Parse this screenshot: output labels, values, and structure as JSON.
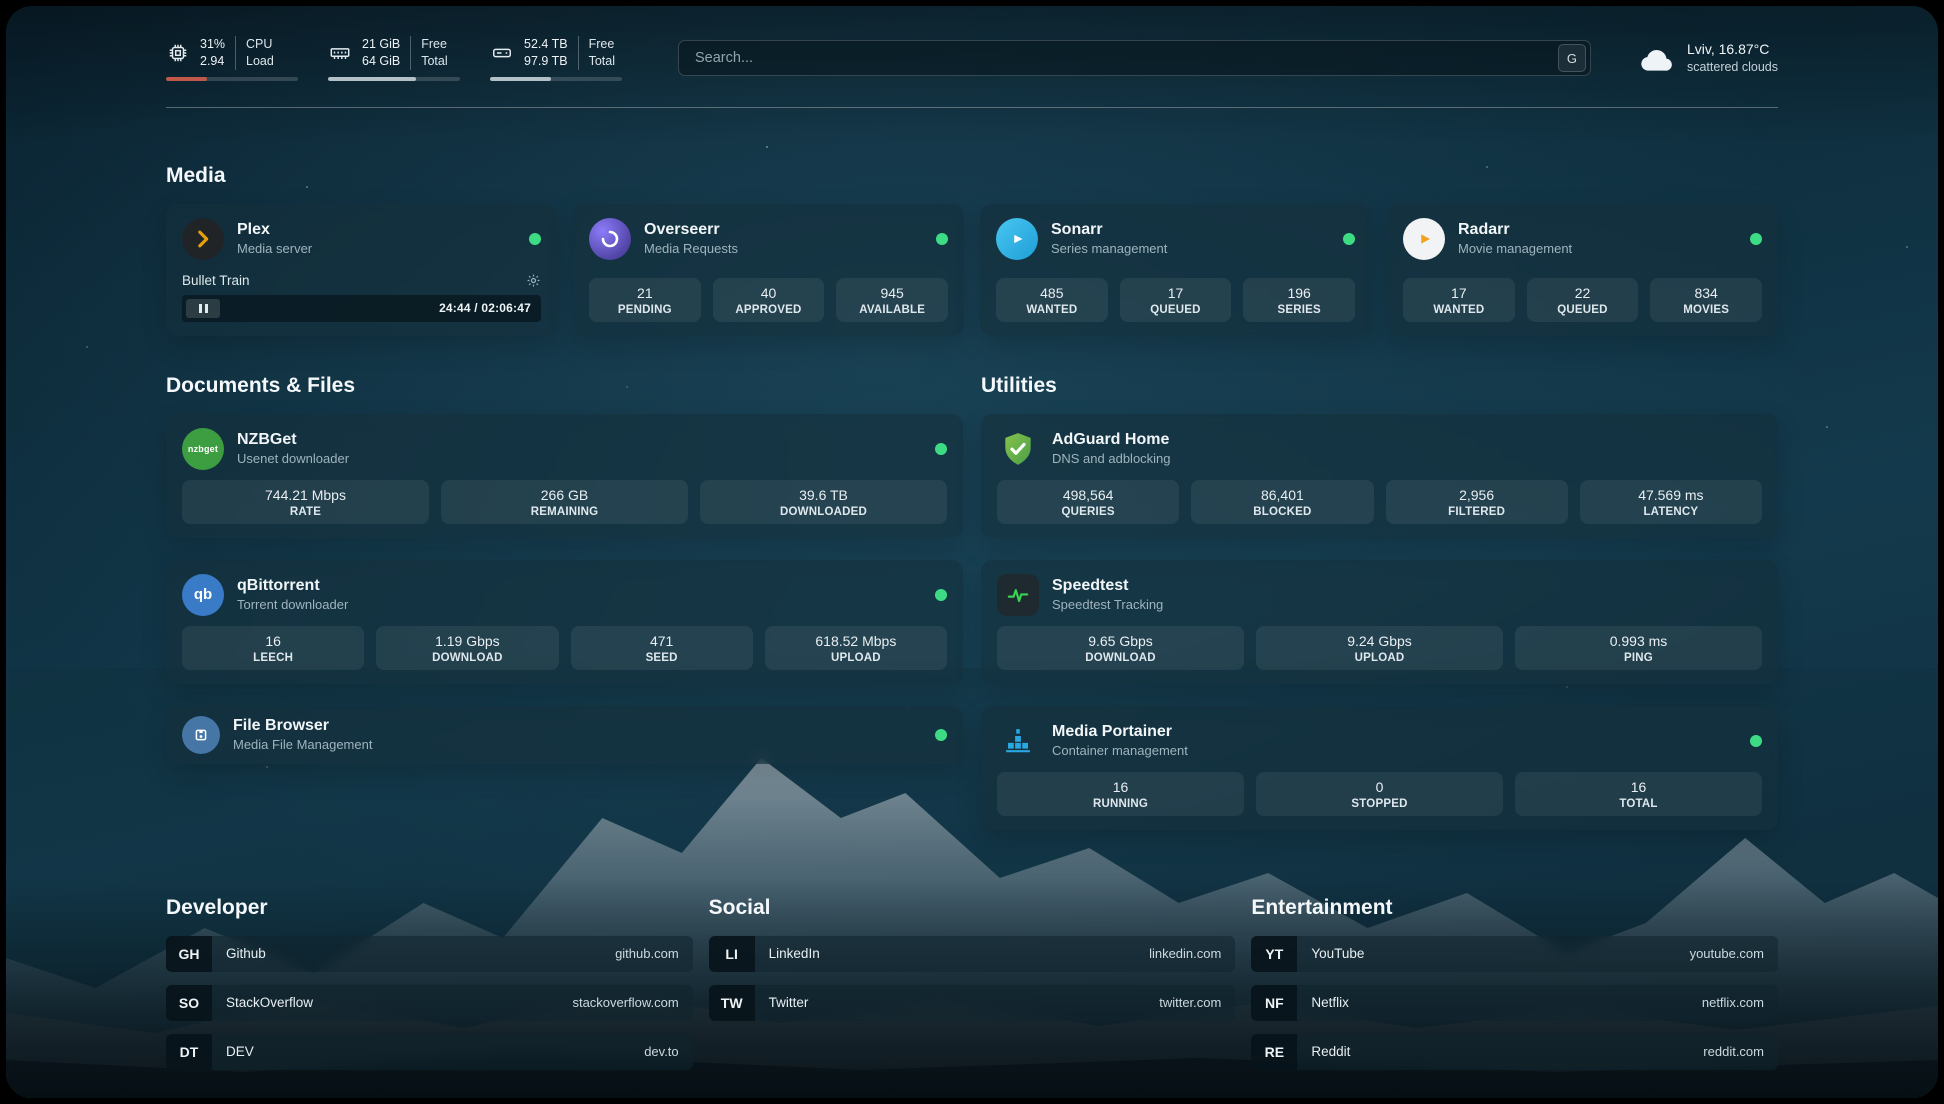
{
  "theme": {
    "accent_green": "#3ddc84",
    "cpu_bar_color": "#c2584a",
    "usage_bar_color": "#b4c0c8"
  },
  "topbar": {
    "cpu": {
      "icon": "cpu-icon",
      "value": "31%",
      "value2": "2.94",
      "label1": "CPU",
      "label2": "Load",
      "bar_pct": 31,
      "bar_color": "#c2584a"
    },
    "ram": {
      "icon": "ram-icon",
      "value": "21 GiB",
      "value2": "64 GiB",
      "label1": "Free",
      "label2": "Total",
      "bar_pct": 67,
      "bar_color": "#b4c0c8"
    },
    "disk": {
      "icon": "disk-icon",
      "value": "52.4 TB",
      "value2": "97.9 TB",
      "label1": "Free",
      "label2": "Total",
      "bar_pct": 46,
      "bar_color": "#b4c0c8"
    },
    "search": {
      "placeholder": "Search...",
      "button_label": "G"
    },
    "weather": {
      "icon": "cloud-icon",
      "location": "Lviv, 16.87°C",
      "condition": "scattered clouds"
    }
  },
  "sections": {
    "media": {
      "title": "Media",
      "apps": [
        {
          "icon": "plex-icon",
          "name": "Plex",
          "description": "Media server",
          "status_color": "#3ddc84",
          "player": {
            "track": "Bullet Train",
            "time": "24:44 / 02:06:47"
          }
        },
        {
          "icon": "overseerr-icon",
          "name": "Overseerr",
          "description": "Media Requests",
          "status_color": "#3ddc84",
          "stats": [
            {
              "value": "21",
              "label": "PENDING"
            },
            {
              "value": "40",
              "label": "APPROVED"
            },
            {
              "value": "945",
              "label": "AVAILABLE"
            }
          ]
        },
        {
          "icon": "sonarr-icon",
          "name": "Sonarr",
          "description": "Series management",
          "status_color": "#3ddc84",
          "stats": [
            {
              "value": "485",
              "label": "WANTED"
            },
            {
              "value": "17",
              "label": "QUEUED"
            },
            {
              "value": "196",
              "label": "SERIES"
            }
          ]
        },
        {
          "icon": "radarr-icon",
          "name": "Radarr",
          "description": "Movie management",
          "status_color": "#3ddc84",
          "stats": [
            {
              "value": "17",
              "label": "WANTED"
            },
            {
              "value": "22",
              "label": "QUEUED"
            },
            {
              "value": "834",
              "label": "MOVIES"
            }
          ]
        }
      ]
    },
    "documents": {
      "title": "Documents & Files",
      "apps": [
        {
          "icon": "nzbget-icon",
          "icon_text": "nzbget",
          "name": "NZBGet",
          "description": "Usenet downloader",
          "status_color": "#3ddc84",
          "stats": [
            {
              "value": "744.21 Mbps",
              "label": "RATE"
            },
            {
              "value": "266 GB",
              "label": "REMAINING"
            },
            {
              "value": "39.6 TB",
              "label": "DOWNLOADED"
            }
          ]
        },
        {
          "icon": "qbittorrent-icon",
          "icon_text": "qb",
          "name": "qBittorrent",
          "description": "Torrent downloader",
          "status_color": "#3ddc84",
          "stats": [
            {
              "value": "16",
              "label": "LEECH"
            },
            {
              "value": "1.19 Gbps",
              "label": "DOWNLOAD"
            },
            {
              "value": "471",
              "label": "SEED"
            },
            {
              "value": "618.52 Mbps",
              "label": "UPLOAD"
            }
          ]
        },
        {
          "icon": "filebrowser-icon",
          "name": "File Browser",
          "description": "Media File Management",
          "status_color": "#3ddc84"
        }
      ]
    },
    "utilities": {
      "title": "Utilities",
      "apps": [
        {
          "icon": "adguard-icon",
          "name": "AdGuard Home",
          "description": "DNS and adblocking",
          "stats": [
            {
              "value": "498,564",
              "label": "QUERIES"
            },
            {
              "value": "86,401",
              "label": "BLOCKED"
            },
            {
              "value": "2,956",
              "label": "FILTERED"
            },
            {
              "value": "47.569 ms",
              "label": "LATENCY"
            }
          ]
        },
        {
          "icon": "speedtest-icon",
          "name": "Speedtest",
          "description": "Speedtest Tracking",
          "stats": [
            {
              "value": "9.65 Gbps",
              "label": "DOWNLOAD"
            },
            {
              "value": "9.24 Gbps",
              "label": "UPLOAD"
            },
            {
              "value": "0.993 ms",
              "label": "PING"
            }
          ]
        },
        {
          "icon": "portainer-icon",
          "name": "Media Portainer",
          "description": "Container management",
          "status_color": "#3ddc84",
          "stats": [
            {
              "value": "16",
              "label": "RUNNING"
            },
            {
              "value": "0",
              "label": "STOPPED"
            },
            {
              "value": "16",
              "label": "TOTAL"
            }
          ]
        }
      ]
    },
    "developer": {
      "title": "Developer",
      "bookmarks": [
        {
          "abbr": "GH",
          "name": "Github",
          "url": "github.com"
        },
        {
          "abbr": "SO",
          "name": "StackOverflow",
          "url": "stackoverflow.com"
        },
        {
          "abbr": "DT",
          "name": "DEV",
          "url": "dev.to"
        }
      ]
    },
    "social": {
      "title": "Social",
      "bookmarks": [
        {
          "abbr": "LI",
          "name": "LinkedIn",
          "url": "linkedin.com"
        },
        {
          "abbr": "TW",
          "name": "Twitter",
          "url": "twitter.com"
        }
      ]
    },
    "entertainment": {
      "title": "Entertainment",
      "bookmarks": [
        {
          "abbr": "YT",
          "name": "YouTube",
          "url": "youtube.com"
        },
        {
          "abbr": "NF",
          "name": "Netflix",
          "url": "netflix.com"
        },
        {
          "abbr": "RE",
          "name": "Reddit",
          "url": "reddit.com"
        }
      ]
    }
  }
}
